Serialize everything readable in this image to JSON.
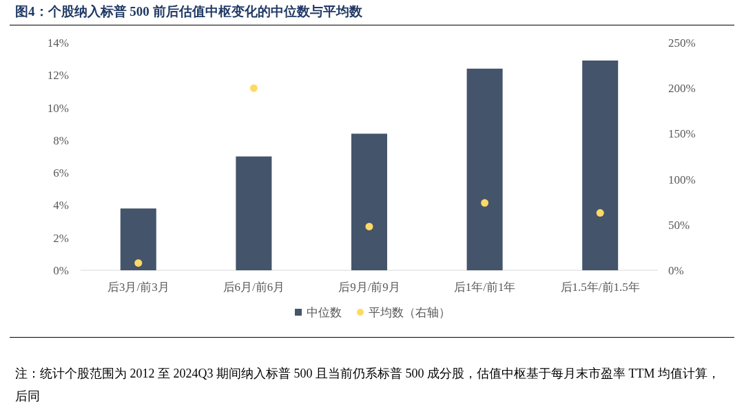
{
  "chart_data": {
    "type": "bar",
    "title": "图4：个股纳入标普 500 前后估值中枢变化的中位数与平均数",
    "categories": [
      "后3月/前3月",
      "后6月/前6月",
      "后9月/前9月",
      "后1年/前1年",
      "后1.5年/前1.5年"
    ],
    "series": [
      {
        "name": "中位数",
        "type": "bar",
        "color": "#44546a",
        "values": [
          3.8,
          7.0,
          8.4,
          12.4,
          12.9
        ]
      },
      {
        "name": "平均数（右轴）",
        "type": "scatter",
        "axis": "y2",
        "color": "#ffd966",
        "values": [
          8,
          200,
          48,
          74,
          63
        ]
      }
    ],
    "ylim": [
      0,
      14
    ],
    "yticks": [
      {
        "value": 0,
        "label": "0%"
      },
      {
        "value": 2,
        "label": "2%"
      },
      {
        "value": 4,
        "label": "4%"
      },
      {
        "value": 6,
        "label": "6%"
      },
      {
        "value": 8,
        "label": "8%"
      },
      {
        "value": 10,
        "label": "10%"
      },
      {
        "value": 12,
        "label": "12%"
      },
      {
        "value": 14,
        "label": "14%"
      }
    ],
    "y2lim": [
      0,
      250
    ],
    "y2ticks": [
      {
        "value": 0,
        "label": "0%"
      },
      {
        "value": 50,
        "label": "50%"
      },
      {
        "value": 100,
        "label": "100%"
      },
      {
        "value": 150,
        "label": "150%"
      },
      {
        "value": 200,
        "label": "200%"
      },
      {
        "value": 250,
        "label": "250%"
      }
    ],
    "legend": "bottom",
    "marker": "circle",
    "annotations": [
      "注：统计个股范围为 2012 至 2024Q3 期间纳入标普 500 且当前仍系标普 500 成分股，估值中枢基于每月末市盈率 TTM 均值计算，后同"
    ]
  }
}
